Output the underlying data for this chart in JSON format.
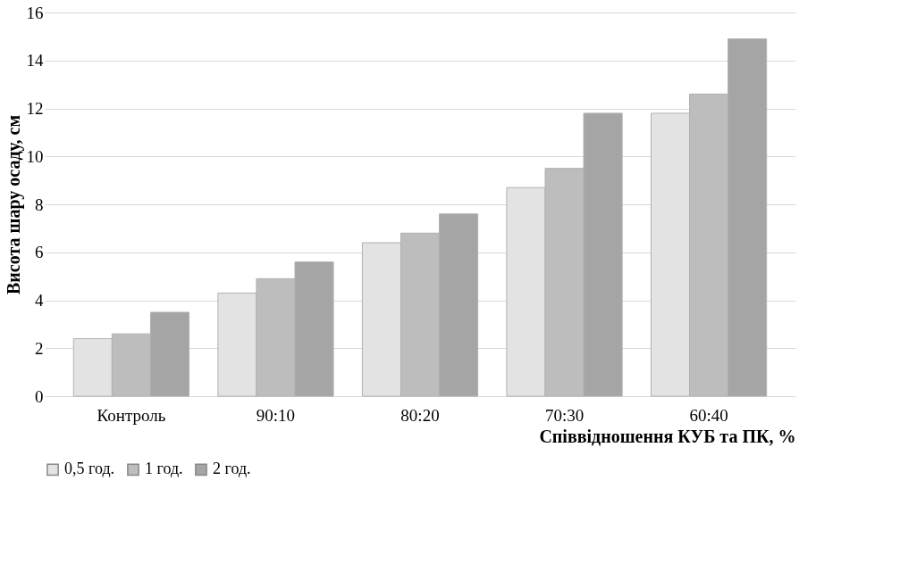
{
  "chart_data": {
    "type": "bar",
    "xlabel": "Співвідношення КУБ та ПК, %",
    "ylabel": "Висота шару осаду, см",
    "categories": [
      "Контроль",
      "90:10",
      "80:20",
      "70:30",
      "60:40"
    ],
    "series": [
      {
        "name": "0,5 год.",
        "color": "#e3e3e3",
        "values": [
          2.4,
          4.3,
          6.4,
          8.7,
          11.8
        ]
      },
      {
        "name": "1 год.",
        "color": "#bdbdbd",
        "values": [
          2.6,
          4.9,
          6.8,
          9.5,
          12.6
        ]
      },
      {
        "name": "2 год.",
        "color": "#a5a5a5",
        "values": [
          3.5,
          5.6,
          7.6,
          11.8,
          14.9
        ]
      }
    ],
    "ylim": [
      0,
      16
    ],
    "yticks": [
      0,
      2,
      4,
      6,
      8,
      10,
      12,
      14,
      16
    ],
    "grid": "y",
    "legend": "bottom"
  }
}
